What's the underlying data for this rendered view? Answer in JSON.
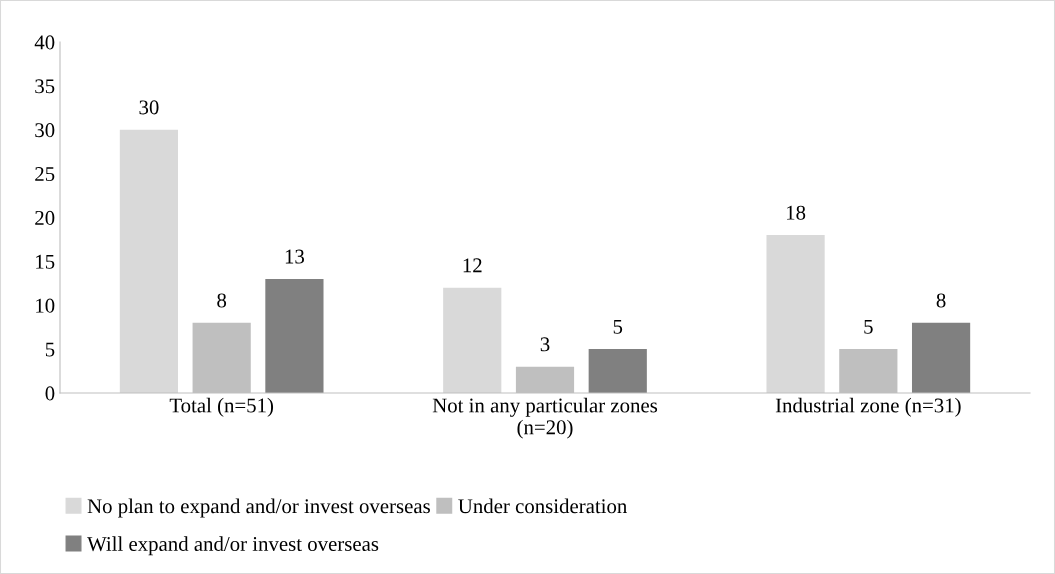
{
  "chart_data": {
    "type": "bar",
    "categories": [
      "Total (n=51)",
      "Not in any particular zones\n(n=20)",
      "Industrial zone (n=31)"
    ],
    "series": [
      {
        "name": "No plan to expand and/or invest overseas",
        "color": "#d9d9d9",
        "values": [
          30,
          12,
          18
        ]
      },
      {
        "name": "Under consideration",
        "color": "#bfbfbf",
        "values": [
          8,
          3,
          5
        ]
      },
      {
        "name": "Will expand and/or invest overseas",
        "color": "#808080",
        "values": [
          13,
          5,
          8
        ]
      }
    ],
    "ylim": [
      0,
      40
    ],
    "yticks": [
      0,
      5,
      10,
      15,
      20,
      25,
      30,
      35,
      40
    ],
    "grid": false,
    "legend": "bottom",
    "data_labels": true
  }
}
